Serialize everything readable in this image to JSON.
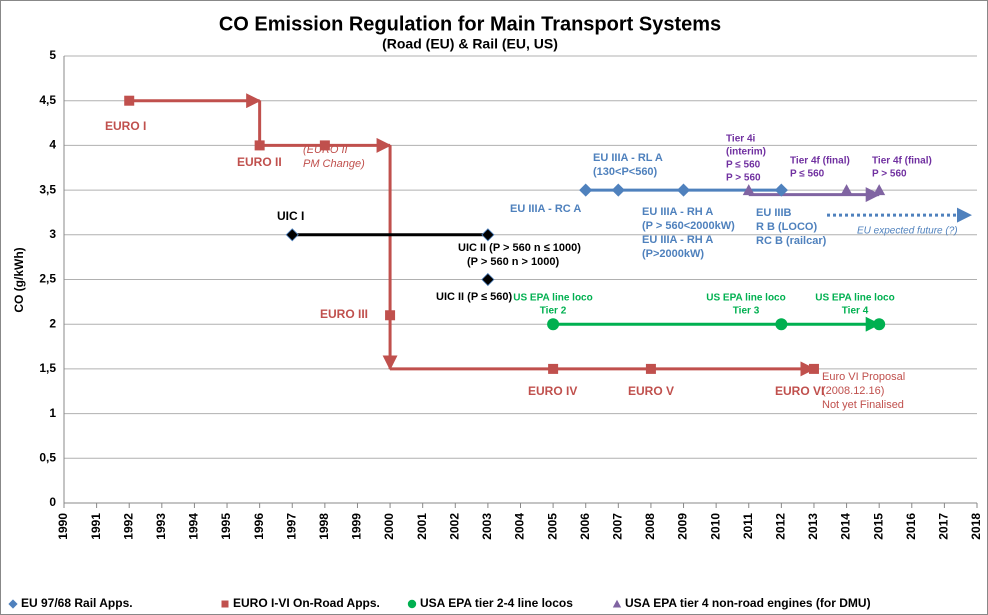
{
  "chart_data": {
    "type": "scatter",
    "title": "CO Emission Regulation for Main Transport Systems",
    "subtitle": "(Road (EU) & Rail (EU, US)",
    "y_label": "CO (g/kWh)",
    "xlim": [
      1990,
      2018
    ],
    "xticks": [
      1990,
      1991,
      1992,
      1993,
      1994,
      1995,
      1996,
      1997,
      1998,
      1999,
      2000,
      2001,
      2002,
      2003,
      2004,
      2005,
      2006,
      2007,
      2008,
      2009,
      2010,
      2011,
      2012,
      2013,
      2014,
      2015,
      2016,
      2017,
      2018
    ],
    "ylim": [
      0,
      5
    ],
    "yticks": [
      0,
      {
        "value": 0.5,
        "label": "0,5"
      },
      1,
      {
        "value": 1.5,
        "label": "1,5"
      },
      2,
      {
        "value": 2.5,
        "label": "2,5"
      },
      3,
      {
        "value": 3.5,
        "label": "3,5"
      },
      4,
      {
        "value": 4.5,
        "label": "4,5"
      },
      5
    ],
    "grid": true,
    "legend": "bottom",
    "series": [
      {
        "name": "EU 97/68 Rail Apps.",
        "color": "#4f81bd",
        "marker": "diamond",
        "x": [
          2006,
          2007,
          2009,
          2012
        ],
        "y": [
          3.5,
          3.5,
          3.5,
          3.5
        ],
        "lines": [
          {
            "x": [
              2006,
              2012
            ],
            "y": [
              3.5,
              3.5
            ]
          },
          {
            "x": [
              2013.4,
              2017.8
            ],
            "y": [
              3.22,
              3.22
            ],
            "dash": true,
            "arrow": true
          }
        ]
      },
      {
        "name": "EURO I-VI On-Road Apps.",
        "color": "#c0504d",
        "marker": "square",
        "x": [
          1992,
          1996,
          1998,
          2000,
          2005,
          2008,
          2013
        ],
        "y": [
          4.5,
          4,
          4,
          2.1,
          1.5,
          1.5,
          1.5
        ],
        "lines": [
          {
            "x": [
              1992,
              1996
            ],
            "y": [
              4.5,
              4.5
            ],
            "arrow": true
          },
          {
            "x": [
              1996,
              1996,
              2000
            ],
            "y": [
              4.5,
              4,
              4
            ],
            "arrow": true
          },
          {
            "x": [
              2000,
              2000
            ],
            "y": [
              4,
              1.5
            ],
            "arrow": true
          },
          {
            "x": [
              2000,
              2013
            ],
            "y": [
              1.5,
              1.5
            ],
            "arrow": true
          }
        ]
      },
      {
        "name": "USA EPA tier 2-4 line locos",
        "color": "#00b050",
        "marker": "circle",
        "x": [
          2005,
          2012,
          2015
        ],
        "y": [
          2,
          2,
          2
        ],
        "lines": [
          {
            "x": [
              2005,
              2015
            ],
            "y": [
              2,
              2
            ],
            "arrow": true
          }
        ]
      },
      {
        "name": "USA EPA tier 4 non-road engines (for DMU)",
        "color": "#8064a2",
        "marker": "triangle",
        "x": [
          2011,
          2014,
          2015
        ],
        "y": [
          3.5,
          3.5,
          3.5
        ],
        "lines": [
          {
            "x": [
              2011,
              2015
            ],
            "y": [
              3.45,
              3.45
            ],
            "arrow": true
          }
        ]
      },
      {
        "color": "#000000",
        "marker": "diamond",
        "x": [
          1997,
          2003,
          2003
        ],
        "y": [
          3,
          3,
          2.5
        ],
        "lines": [
          {
            "x": [
              1997,
              2003
            ],
            "y": [
              3,
              3
            ]
          }
        ]
      }
    ],
    "annotations": [
      {
        "lines": [
          "EURO I"
        ],
        "color": "#c0504d"
      },
      {
        "lines": [
          "EURO II"
        ],
        "color": "#c0504d"
      },
      {
        "lines": [
          "(EURO II",
          "PM Change)"
        ],
        "color": "#c0504d"
      },
      {
        "lines": [
          "EURO III"
        ],
        "color": "#c0504d"
      },
      {
        "lines": [
          "EURO IV"
        ],
        "color": "#c0504d"
      },
      {
        "lines": [
          "EURO V"
        ],
        "color": "#c0504d"
      },
      {
        "lines": [
          "EURO VI"
        ],
        "color": "#c0504d"
      },
      {
        "lines": [
          "Euro VI Proposal",
          "(2008.12.16)",
          "Not yet Finalised"
        ],
        "color": "#c0504d"
      },
      {
        "lines": [
          "UIC I"
        ],
        "color": "#000000"
      },
      {
        "lines": [
          "UIC II (P > 560 n ≤ 1000)",
          "(P > 560 n > 1000)"
        ],
        "color": "#000000"
      },
      {
        "lines": [
          "UIC II (P ≤ 560)"
        ],
        "color": "#000000"
      },
      {
        "lines": [
          "EU IIIA - RC A"
        ],
        "color": "#4f81bd"
      },
      {
        "lines": [
          "EU IIIA - RL A",
          "(130<P<560)"
        ],
        "color": "#4f81bd"
      },
      {
        "lines": [
          "EU IIIA - RH A",
          "(P > 560<2000kW)",
          "EU IIIA - RH A",
          "(P>2000kW)"
        ],
        "color": "#4f81bd"
      },
      {
        "lines": [
          "EU IIIB",
          "R B (LOCO)",
          "RC B (railcar)"
        ],
        "color": "#4f81bd"
      },
      {
        "lines": [
          "EU expected future (?)"
        ],
        "color": "#4f81bd"
      },
      {
        "lines": [
          "Tier 4i",
          "(interim)",
          "P ≤ 560",
          "P > 560"
        ],
        "color": "#7030a0"
      },
      {
        "lines": [
          "Tier 4f (final)",
          "P ≤ 560"
        ],
        "color": "#7030a0"
      },
      {
        "lines": [
          "Tier 4f (final)",
          "P > 560"
        ],
        "color": "#7030a0"
      },
      {
        "lines": [
          "US EPA line loco",
          "Tier 2"
        ],
        "color": "#00b050"
      },
      {
        "lines": [
          "US EPA line loco",
          "Tier 3"
        ],
        "color": "#00b050"
      },
      {
        "lines": [
          "US EPA line loco",
          "Tier 4"
        ],
        "color": "#00b050"
      }
    ]
  }
}
